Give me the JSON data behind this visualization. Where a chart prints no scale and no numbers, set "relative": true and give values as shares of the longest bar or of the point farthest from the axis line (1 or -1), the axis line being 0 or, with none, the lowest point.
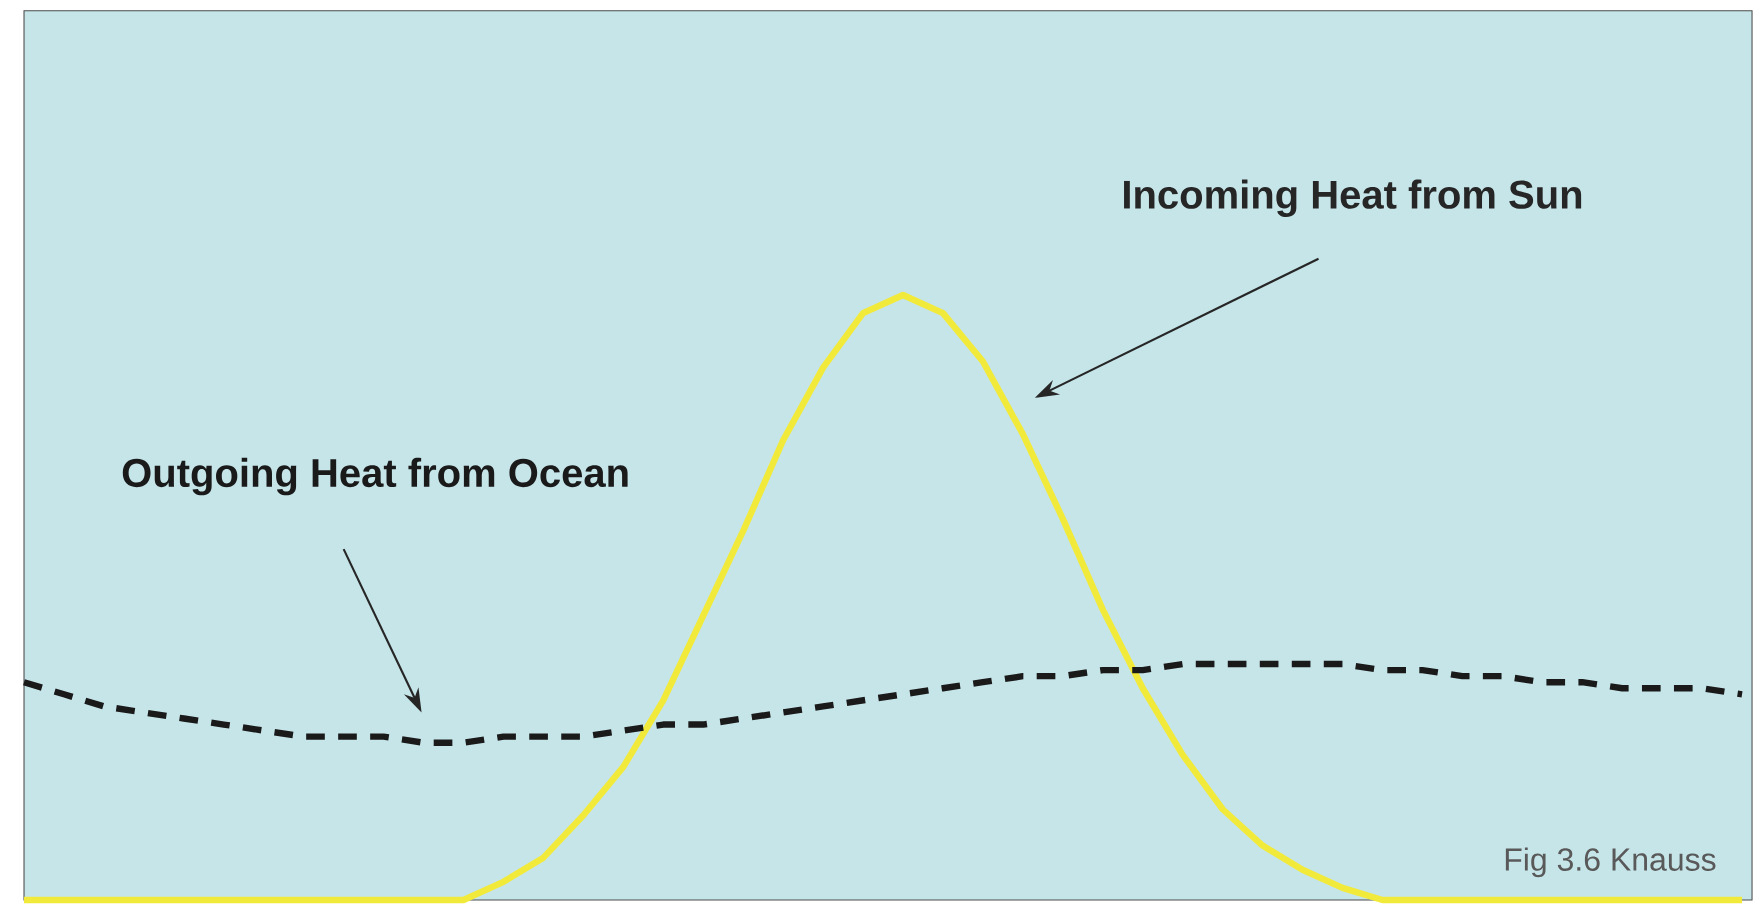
{
  "chart_data": {
    "type": "line",
    "relative": true,
    "categories": [
      null,
      null,
      null,
      null,
      null,
      null,
      null,
      null,
      null,
      null,
      null,
      null,
      null,
      null,
      null,
      null,
      null,
      null,
      null,
      null,
      null,
      null,
      null,
      null,
      null,
      null,
      null,
      null,
      null,
      null,
      null,
      null,
      null,
      null,
      null,
      null,
      null,
      null,
      null,
      null,
      null,
      null,
      null,
      null
    ],
    "series": [
      {
        "name": "Incoming Heat from Sun",
        "color": "#f2ea3a",
        "line_style": "solid",
        "values": [
          0,
          0,
          0,
          0,
          0,
          0,
          0,
          0,
          0,
          0,
          0,
          0,
          0.03,
          0.07,
          0.14,
          0.22,
          0.33,
          0.47,
          0.61,
          0.76,
          0.88,
          0.97,
          1.0,
          0.97,
          0.89,
          0.77,
          0.63,
          0.48,
          0.35,
          0.24,
          0.15,
          0.09,
          0.05,
          0.02,
          0,
          0,
          0,
          0,
          0,
          0,
          0,
          0,
          0,
          0
        ]
      },
      {
        "name": "Outgoing Heat from Ocean",
        "color": "#1a1a1a",
        "line_style": "dashed",
        "values": [
          0.36,
          0.34,
          0.32,
          0.31,
          0.3,
          0.29,
          0.28,
          0.27,
          0.27,
          0.27,
          0.26,
          0.26,
          0.27,
          0.27,
          0.27,
          0.28,
          0.29,
          0.29,
          0.3,
          0.31,
          0.32,
          0.33,
          0.34,
          0.35,
          0.36,
          0.37,
          0.37,
          0.38,
          0.38,
          0.39,
          0.39,
          0.39,
          0.39,
          0.39,
          0.38,
          0.38,
          0.37,
          0.37,
          0.36,
          0.36,
          0.35,
          0.35,
          0.35,
          0.34
        ]
      }
    ],
    "annotations": [
      "Fig 3.6 Knauss"
    ]
  }
}
